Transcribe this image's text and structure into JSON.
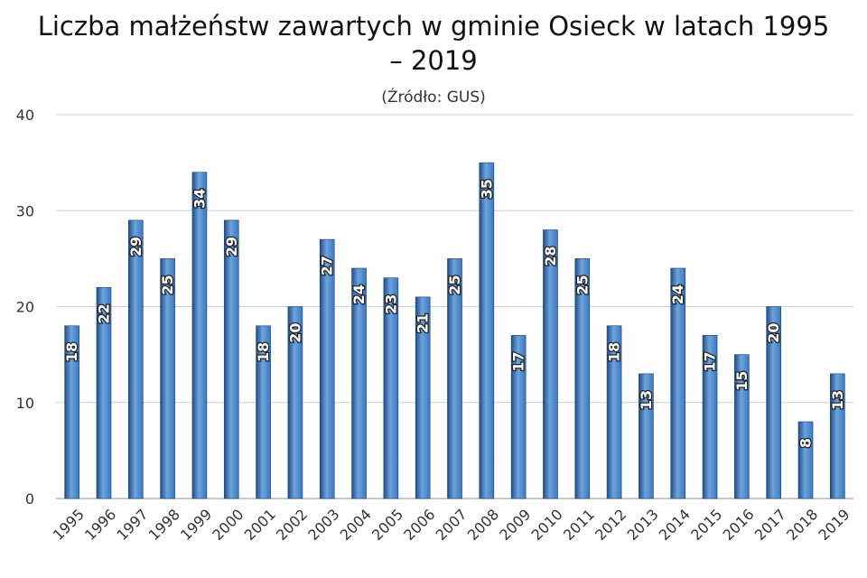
{
  "chart_data": {
    "type": "bar",
    "title_line1": "Liczba małżeństw zawartych w gminie Osieck w latach 1995",
    "title_line2": "– 2019",
    "subtitle": "(Źródło: GUS)",
    "categories": [
      "1995",
      "1996",
      "1997",
      "1998",
      "1999",
      "2000",
      "2001",
      "2002",
      "2003",
      "2004",
      "2005",
      "2006",
      "2007",
      "2008",
      "2009",
      "2010",
      "2011",
      "2012",
      "2013",
      "2014",
      "2015",
      "2016",
      "2017",
      "2018",
      "2019"
    ],
    "values": [
      18,
      22,
      29,
      25,
      34,
      29,
      18,
      20,
      27,
      24,
      23,
      21,
      25,
      35,
      17,
      28,
      25,
      18,
      13,
      24,
      17,
      15,
      20,
      8,
      13
    ],
    "yticks": [
      0,
      10,
      20,
      30,
      40
    ],
    "ylim": [
      0,
      40
    ],
    "grid": true,
    "legend": "none",
    "colors": {
      "bar_dark": "#1f4e8a",
      "bar_light": "#6ea3dc",
      "bar_mid": "#3a78c0",
      "grid": "#c8d0dc"
    }
  }
}
